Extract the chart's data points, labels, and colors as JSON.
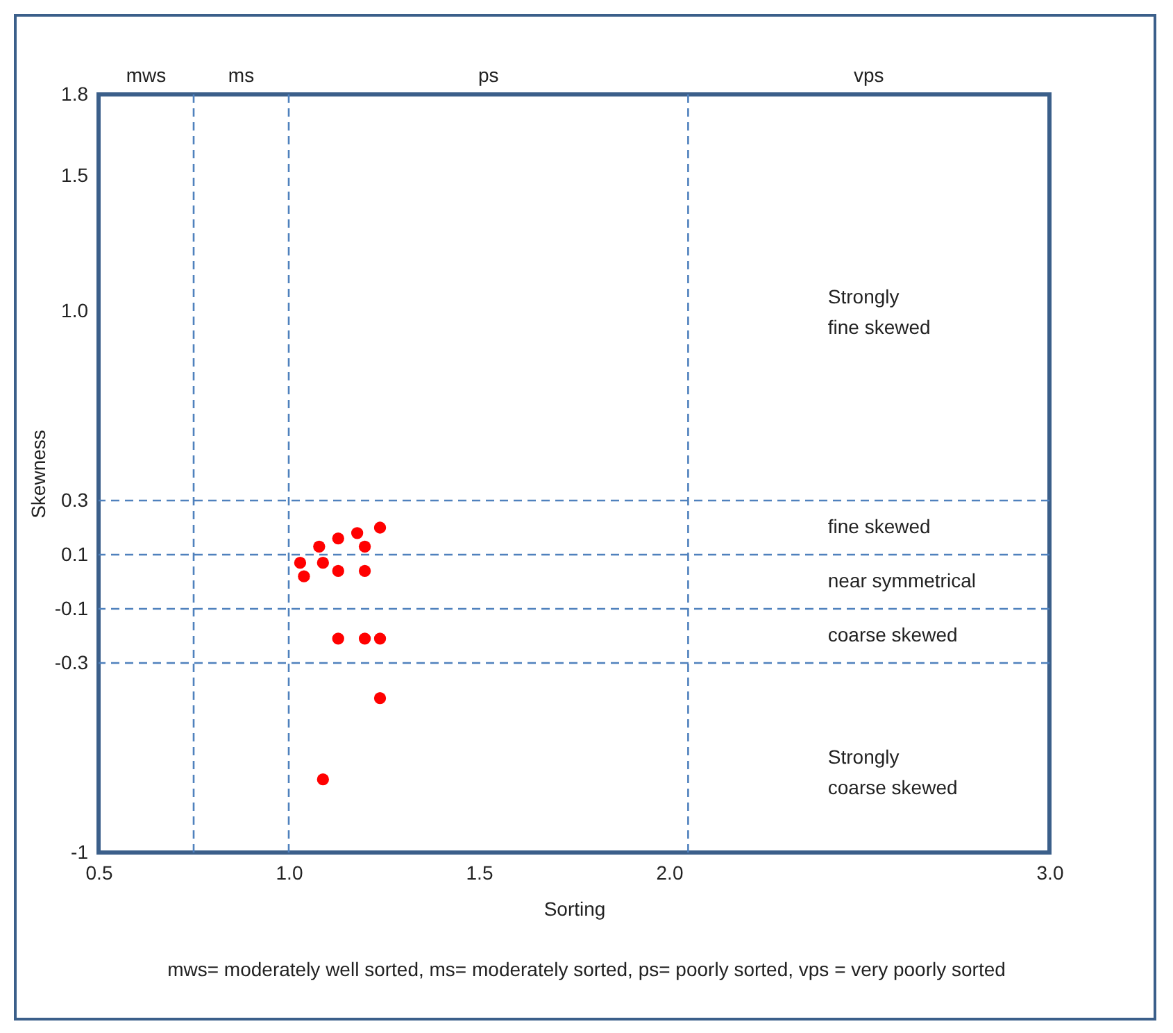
{
  "chart_data": {
    "type": "scatter",
    "xlabel": "Sorting",
    "ylabel": "Skewness",
    "x": [
      1.24,
      1.18,
      1.13,
      1.08,
      1.2,
      1.03,
      1.09,
      1.13,
      1.2,
      1.04,
      1.13,
      1.2,
      1.24,
      1.24,
      1.09
    ],
    "series": [
      {
        "color": "#ff0000",
        "values": [
          0.2,
          0.18,
          0.16,
          0.13,
          0.13,
          0.07,
          0.07,
          0.04,
          0.04,
          0.02,
          -0.21,
          -0.21,
          -0.21,
          -0.43,
          -0.73
        ]
      }
    ],
    "marker": "circle",
    "legend": false,
    "grid": false,
    "xlim": [
      0.5,
      3.0
    ],
    "xticks": [
      {
        "value": 0.5,
        "label": "0.5"
      },
      {
        "value": 1.0,
        "label": "1.0"
      },
      {
        "value": 1.5,
        "label": "1.5"
      },
      {
        "value": 2.0,
        "label": "2.0"
      },
      {
        "value": 3.0,
        "label": "3.0"
      }
    ],
    "ylim": [
      -1,
      1.8
    ],
    "yticks": [
      -1,
      -0.3,
      -0.1,
      0.1,
      0.3,
      {
        "value": 1.0,
        "label": "1.0"
      },
      1.5,
      1.8
    ],
    "ref_lines": [
      {
        "axis": "x",
        "value": 0.75,
        "color": "#4f81bd",
        "line_style": "dashed"
      },
      {
        "axis": "x",
        "value": 1.0,
        "color": "#4f81bd",
        "line_style": "dashed"
      },
      {
        "axis": "x",
        "value": 2.05,
        "color": "#4f81bd",
        "line_style": "dashed"
      },
      {
        "axis": "y",
        "value": 0.3,
        "color": "#4f81bd",
        "line_style": "dashed"
      },
      {
        "axis": "y",
        "value": 0.1,
        "color": "#4f81bd",
        "line_style": "dashed"
      },
      {
        "axis": "y",
        "value": -0.1,
        "color": "#4f81bd",
        "line_style": "dashed"
      },
      {
        "axis": "y",
        "value": -0.3,
        "color": "#4f81bd",
        "line_style": "dashed"
      }
    ],
    "annotations": [
      "mws",
      "ms",
      "ps",
      "vps",
      "Strongly\nfine skewed",
      "fine skewed",
      "near symmetrical",
      "coarse skewed",
      "Strongly\ncoarse skewed",
      "mws= moderately well sorted, ms= moderately sorted, ps= poorly sorted, vps = very poorly sorted"
    ]
  }
}
